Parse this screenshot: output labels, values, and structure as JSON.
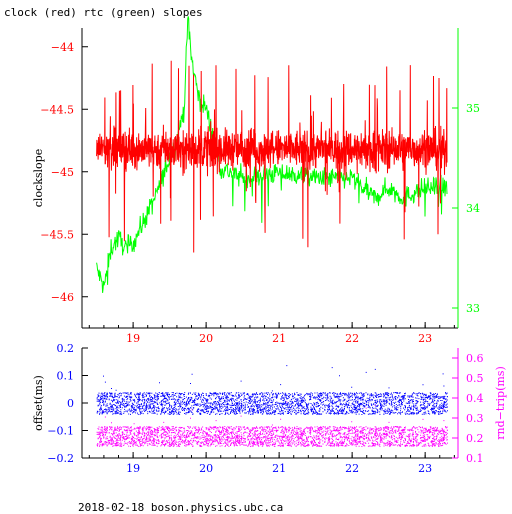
{
  "page": {
    "title": "clock (red) rtc (green) slopes",
    "footer": "2018-02-18  boson.physics.ubc.ca"
  },
  "colors": {
    "clock": "#ff0000",
    "rtc": "#00ff00",
    "offset": "#0000ff",
    "rnd_trip": "#ff00ff",
    "axis": "#000000"
  },
  "chart_data": [
    {
      "type": "line",
      "title": "clock (red) rtc (green) slopes",
      "xlim": [
        18.3,
        23.45
      ],
      "ylim": [
        -46.25,
        -43.85
      ],
      "y2lim": [
        32.8,
        35.8
      ],
      "ylabel": "clockslope",
      "xticks": [
        19,
        20,
        21,
        22,
        23
      ],
      "xticklabels": [
        "19",
        "20",
        "21",
        "22",
        "23"
      ],
      "yticks": [
        -44,
        -44.5,
        -45,
        -45.5,
        -46
      ],
      "yticklabels": [
        "−44",
        "−44.5",
        "−45",
        "−45.5",
        "−46"
      ],
      "y2ticks": [
        33,
        34,
        35
      ],
      "y2ticklabels": [
        "33",
        "34",
        "35"
      ],
      "grid": false,
      "series": [
        {
          "name": "clock",
          "color": "#ff0000",
          "axis": "left",
          "x_range": [
            18.5,
            23.3
          ],
          "band_center": -44.82,
          "band_halfwidth": 0.22,
          "spike_high": -44.1,
          "spike_low": -46.2
        },
        {
          "name": "rtc",
          "color": "#00ff00",
          "axis": "right",
          "x": [
            18.5,
            18.6,
            18.7,
            18.8,
            18.9,
            19.0,
            19.1,
            19.2,
            19.3,
            19.4,
            19.5,
            19.6,
            19.7,
            19.75,
            19.8,
            19.9,
            20.0,
            20.2,
            20.5,
            21.0,
            21.5,
            22.0,
            22.3,
            22.5,
            22.7,
            23.0,
            23.3
          ],
          "y": [
            33.4,
            33.2,
            33.6,
            33.7,
            33.6,
            33.65,
            33.8,
            33.95,
            34.1,
            34.3,
            34.5,
            34.7,
            35.0,
            35.9,
            35.5,
            35.1,
            35.0,
            34.4,
            34.3,
            34.35,
            34.3,
            34.3,
            34.1,
            34.2,
            34.1,
            34.2,
            34.2
          ]
        }
      ]
    },
    {
      "type": "scatter",
      "xlim": [
        18.3,
        23.45
      ],
      "ylim": [
        -0.2,
        0.2
      ],
      "y2lim": [
        0.1,
        0.65
      ],
      "ylabel": "offset(ms)",
      "y2label": "rnd−trip(ms)",
      "xticks": [
        19,
        20,
        21,
        22,
        23
      ],
      "xticklabels": [
        "19",
        "20",
        "21",
        "22",
        "23"
      ],
      "yticks": [
        0.2,
        0.1,
        0,
        -0.1,
        -0.2
      ],
      "yticklabels": [
        "0.2",
        "0.1",
        "0",
        "−0.1",
        "−0.2"
      ],
      "y2ticks": [
        0.6,
        0.5,
        0.4,
        0.3,
        0.2,
        0.1
      ],
      "y2ticklabels": [
        "0.6",
        "0.5",
        "0.4",
        "0.3",
        "0.2",
        "0.1"
      ],
      "grid": false,
      "series": [
        {
          "name": "offset",
          "color": "#0000ff",
          "axis": "left",
          "x_range": [
            18.5,
            23.3
          ],
          "band_center": 0.0,
          "band_halfwidth": 0.04
        },
        {
          "name": "rnd_trip",
          "color": "#ff00ff",
          "axis": "right",
          "x_range": [
            18.5,
            23.3
          ],
          "band_center": 0.21,
          "band_halfwidth": 0.05
        }
      ]
    }
  ]
}
